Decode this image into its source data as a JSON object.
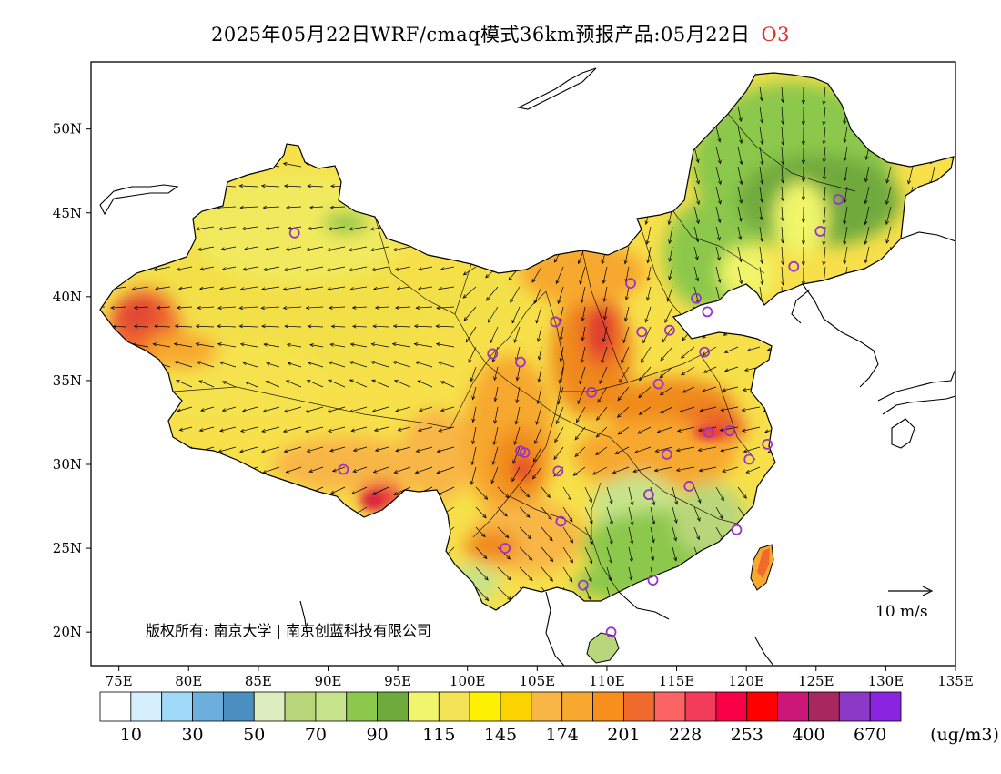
{
  "title": {
    "main": "2025年05月22日WRF/cmaq模式36km预报产品:05月22日",
    "pollutant": "O3"
  },
  "map": {
    "lon_range": [
      73,
      135
    ],
    "lat_range": [
      18,
      54
    ],
    "lon_ticks": [
      "75E",
      "80E",
      "85E",
      "90E",
      "95E",
      "100E",
      "105E",
      "110E",
      "115E",
      "120E",
      "125E",
      "130E",
      "135E"
    ],
    "lat_ticks": [
      "20N",
      "25N",
      "30N",
      "35N",
      "40N",
      "45N",
      "50N"
    ],
    "lon_tick_values": [
      75,
      80,
      85,
      90,
      95,
      100,
      105,
      110,
      115,
      120,
      125,
      130,
      135
    ],
    "lat_tick_values": [
      20,
      25,
      30,
      35,
      40,
      45,
      50
    ],
    "copyright": "版权所有: 南京大学 | 南京创蓝科技有限公司",
    "wind_scale_label": "10 m/s",
    "stations": [
      [
        87.6,
        43.8
      ],
      [
        91.1,
        29.7
      ],
      [
        101.8,
        36.6
      ],
      [
        103.8,
        36.1
      ],
      [
        106.3,
        38.5
      ],
      [
        111.7,
        40.8
      ],
      [
        112.5,
        37.9
      ],
      [
        116.4,
        39.9
      ],
      [
        117.2,
        39.1
      ],
      [
        114.5,
        38.0
      ],
      [
        117.0,
        36.7
      ],
      [
        113.7,
        34.8
      ],
      [
        108.9,
        34.3
      ],
      [
        104.1,
        30.7
      ],
      [
        106.5,
        29.6
      ],
      [
        102.7,
        25.0
      ],
      [
        106.7,
        26.6
      ],
      [
        108.3,
        22.8
      ],
      [
        113.3,
        23.1
      ],
      [
        110.3,
        20.0
      ],
      [
        114.3,
        30.6
      ],
      [
        113.0,
        28.2
      ],
      [
        115.9,
        28.7
      ],
      [
        119.3,
        26.1
      ],
      [
        118.8,
        32.0
      ],
      [
        117.3,
        31.9
      ],
      [
        120.2,
        30.3
      ],
      [
        121.5,
        31.2
      ],
      [
        123.4,
        41.8
      ],
      [
        125.3,
        43.9
      ],
      [
        126.6,
        45.8
      ],
      [
        103.8,
        30.8
      ]
    ],
    "colors": {
      "low_green": "#6faa3c",
      "mid_green": "#b9d77a",
      "yellow": "#f4ea52",
      "gold": "#fbd400",
      "orange": "#f7a82e",
      "dark_orange": "#f08a1c",
      "red_orange": "#e8512c",
      "red": "#d8243c",
      "station": "#9a34c8"
    }
  },
  "legend": {
    "unit": "(ug/m3)",
    "labels": [
      "10",
      "30",
      "50",
      "70",
      "90",
      "115",
      "145",
      "174",
      "201",
      "228",
      "253",
      "400",
      "670"
    ],
    "colors": [
      "#ffffff",
      "#d6effc",
      "#a0d8f7",
      "#6caedc",
      "#4a8ec2",
      "#deedbf",
      "#b9d77a",
      "#c7e38b",
      "#8cc84b",
      "#6faa3c",
      "#f0f56b",
      "#f4e455",
      "#fdf000",
      "#fbd400",
      "#f8b646",
      "#f7a82e",
      "#f88f1c",
      "#f06a2e",
      "#fc6464",
      "#f23c5a",
      "#f70047",
      "#fe0000",
      "#cc1778",
      "#a8275e",
      "#8c39c8",
      "#8a24e0"
    ]
  }
}
